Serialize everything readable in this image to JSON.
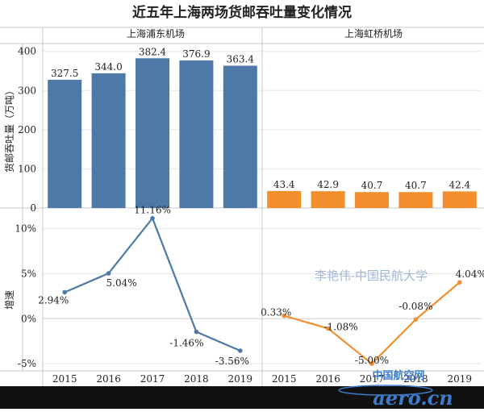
{
  "title": "近五年上海两场货邮吞吐量变化情况",
  "watermark": "李艳伟-中国民航大学",
  "logo": {
    "text_top": "中国航空网",
    "text_bottom": "aero.cn"
  },
  "colors": {
    "pudong": "#4e79a7",
    "hongqiao": "#f28e2b",
    "grid": "#e6e6e6",
    "divider": "#c8c8c8",
    "text": "#222222",
    "watermark": "#9fb6d6",
    "footer": "#111111",
    "logo": "#3d7bc8"
  },
  "chart_data": [
    {
      "type": "bar",
      "panel": "上海浦东机场",
      "categories": [
        "2015",
        "2016",
        "2017",
        "2018",
        "2019"
      ],
      "values": [
        327.5,
        344.0,
        382.4,
        376.9,
        363.4
      ],
      "value_labels": [
        "327.5",
        "344.0",
        "382.4",
        "376.9",
        "363.4"
      ],
      "ylabel": "货邮吞吐量（万吨）",
      "ylim": [
        0,
        420
      ],
      "yticks": [
        0,
        100,
        200,
        300,
        400
      ],
      "ytick_labels": [
        "0",
        "100",
        "200",
        "300",
        "400"
      ],
      "color": "#4e79a7",
      "grid": true
    },
    {
      "type": "bar",
      "panel": "上海虹桥机场",
      "categories": [
        "2015",
        "2016",
        "2017",
        "2018",
        "2019"
      ],
      "values": [
        43.4,
        42.9,
        40.7,
        40.7,
        42.4
      ],
      "value_labels": [
        "43.4",
        "42.9",
        "40.7",
        "40.7",
        "42.4"
      ],
      "ylim": [
        0,
        420
      ],
      "color": "#f28e2b",
      "grid": true
    },
    {
      "type": "line",
      "panel": "上海浦东机场",
      "x": [
        "2015",
        "2016",
        "2017",
        "2018",
        "2019"
      ],
      "values": [
        2.94,
        5.04,
        11.16,
        -1.46,
        -3.56
      ],
      "value_labels": [
        "2.94%",
        "5.04%",
        "11.16%",
        "-1.46%",
        "-3.56%"
      ],
      "ylabel": "增速",
      "ylim": [
        -5.8,
        12.3
      ],
      "yticks": [
        -5,
        0,
        5,
        10
      ],
      "ytick_labels": [
        "-5%",
        "0%",
        "5%",
        "10%"
      ],
      "color": "#4e79a7",
      "grid": true
    },
    {
      "type": "line",
      "panel": "上海虹桥机场",
      "x": [
        "2015",
        "2016",
        "2017",
        "2018",
        "2019"
      ],
      "values": [
        0.33,
        -1.08,
        -5.0,
        -0.08,
        4.04
      ],
      "value_labels": [
        "0.33%",
        "-1.08%",
        "-5.00%",
        "-0.08%",
        "4.04%"
      ],
      "ylim": [
        -5.8,
        12.3
      ],
      "color": "#f28e2b",
      "grid": true
    }
  ]
}
